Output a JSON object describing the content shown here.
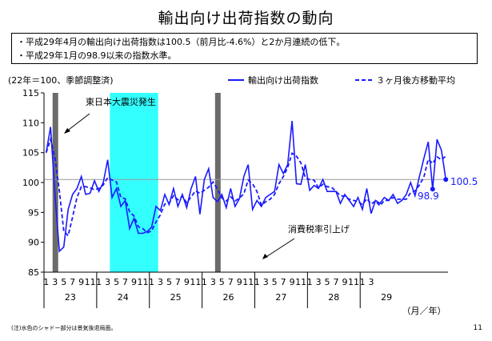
{
  "title": "輸出向け出荷指数の動向",
  "bullets": [
    "・平成29年4月の輸出向け出荷指数は100.5（前月比-4.6%）と2か月連続の低下。",
    "・平成29年1月の98.9以来の指数水準。"
  ],
  "note": "(注)水色のシャドー部分は景気後退局面。",
  "page_number": "11",
  "colors": {
    "line": "#1a1aff",
    "shock_band": "#6b6b6b",
    "recession_band": "#33ffff"
  },
  "chart_data": {
    "type": "line",
    "unit_label": "(22年＝100、季節調整済)",
    "ylim": [
      85,
      115
    ],
    "yticks": [
      "85",
      "90",
      "95",
      "100",
      "105",
      "110",
      "115"
    ],
    "x_month_labels": [
      "1",
      "3",
      "5",
      "7",
      "9",
      "11",
      "1",
      "3",
      "5",
      "7",
      "9",
      "11",
      "1",
      "3",
      "5",
      "7",
      "9",
      "11",
      "1",
      "3",
      "5",
      "7",
      "9",
      "11",
      "1",
      "3",
      "5",
      "7",
      "9",
      "11",
      "1",
      "3",
      "5",
      "7",
      "9",
      "11",
      "1",
      "3"
    ],
    "x_year_labels": [
      "23",
      "24",
      "25",
      "26",
      "27",
      "28",
      "29"
    ],
    "x_unit_label": "（月／年）",
    "series": [
      {
        "name": "輸出向け出荷指数",
        "style": "solid",
        "values": [
          105.0,
          109.3,
          98.0,
          88.5,
          89.2,
          95.5,
          98.0,
          99.0,
          101.0,
          98.0,
          98.2,
          100.3,
          98.5,
          100.0,
          103.8,
          97.5,
          99.0,
          96.0,
          97.0,
          92.3,
          94.0,
          91.5,
          91.5,
          91.8,
          92.5,
          96.0,
          95.3,
          98.0,
          96.3,
          99.0,
          96.0,
          98.0,
          95.8,
          99.0,
          101.0,
          94.7,
          100.5,
          102.3,
          97.5,
          96.8,
          98.0,
          95.8,
          99.0,
          96.0,
          97.3,
          101.0,
          103.0,
          95.5,
          97.0,
          96.0,
          97.5,
          98.0,
          98.5,
          103.0,
          101.5,
          103.0,
          110.3,
          99.8,
          99.7,
          103.0,
          98.7,
          99.5,
          99.0,
          100.5,
          98.5,
          98.5,
          98.5,
          96.5,
          98.0,
          97.0,
          96.0,
          97.5,
          95.5,
          99.0,
          94.8,
          97.0,
          96.5,
          97.5,
          97.0,
          98.0,
          96.5,
          97.0,
          98.0,
          100.0,
          97.8,
          101.0,
          104.0,
          106.8,
          98.9,
          107.2,
          105.4,
          100.5
        ]
      },
      {
        "name": "３ヶ月後方移動平均",
        "style": "dashed",
        "values": [
          105.0,
          107.2,
          104.1,
          98.6,
          91.9,
          91.1,
          94.2,
          97.5,
          99.3,
          99.3,
          99.1,
          98.8,
          99.0,
          99.6,
          100.8,
          100.4,
          100.1,
          97.5,
          97.3,
          95.1,
          94.4,
          92.6,
          92.3,
          91.6,
          91.9,
          93.4,
          94.6,
          96.4,
          96.5,
          97.8,
          97.1,
          97.7,
          96.6,
          97.6,
          98.6,
          98.2,
          98.7,
          99.2,
          100.1,
          98.9,
          97.4,
          96.9,
          97.6,
          96.9,
          97.4,
          98.1,
          100.4,
          99.8,
          98.5,
          96.2,
          96.8,
          97.2,
          98.0,
          99.8,
          101.0,
          102.5,
          104.9,
          104.4,
          103.3,
          100.8,
          100.5,
          100.4,
          99.1,
          99.7,
          99.3,
          99.2,
          98.5,
          97.8,
          97.7,
          97.2,
          97.0,
          96.8,
          96.3,
          97.3,
          96.4,
          96.9,
          96.1,
          97.0,
          97.0,
          97.5,
          97.2,
          97.2,
          97.2,
          98.3,
          98.6,
          99.6,
          100.9,
          103.9,
          103.2,
          104.3,
          103.8,
          104.4
        ]
      }
    ],
    "annotations": [
      {
        "text": "東日本大震災発生",
        "x_index": 2
      },
      {
        "text": "消費税率引上げ",
        "x_index": 39
      },
      {
        "text": "100.5",
        "x_index": 91,
        "value": 100.5
      },
      {
        "text": "98.9",
        "x_index": 88,
        "value": 98.9
      }
    ],
    "reference_line": 100.5,
    "grid": false,
    "legend_position": "top-right"
  }
}
